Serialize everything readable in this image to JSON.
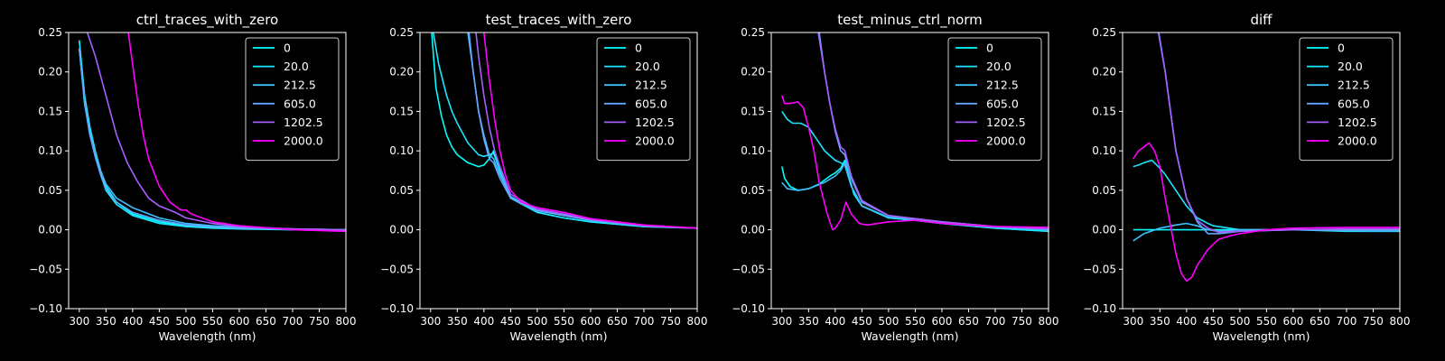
{
  "figure": {
    "background": "#000000",
    "foreground": "#ffffff"
  },
  "legend": {
    "labels": [
      "0",
      "20.0",
      "212.5",
      "605.0",
      "1202.5",
      "2000.0"
    ],
    "colors": [
      "#00ffff",
      "#19e6ff",
      "#40bfff",
      "#66a6ff",
      "#a660ff",
      "#ff00ff"
    ],
    "placement": "top-right"
  },
  "chart_data": [
    {
      "type": "line",
      "title": "ctrl_traces_with_zero",
      "xlabel": "Wavelength (nm)",
      "ylabel": "",
      "xlim": [
        280,
        800
      ],
      "ylim": [
        -0.1,
        0.25
      ],
      "xticks": [
        300,
        350,
        400,
        450,
        500,
        550,
        600,
        650,
        700,
        750,
        800
      ],
      "yticks": [
        -0.1,
        -0.05,
        0.0,
        0.05,
        0.1,
        0.15,
        0.2,
        0.25
      ],
      "ytick_labels": [
        "−0.10",
        "−0.05",
        "0.00",
        "0.05",
        "0.10",
        "0.15",
        "0.20",
        "0.25"
      ],
      "grid": false,
      "legend": "top-right",
      "series": [
        {
          "name": "0",
          "x": [
            300,
            310,
            320,
            330,
            340,
            350,
            370,
            400,
            450,
            500,
            550,
            600,
            700,
            800
          ],
          "y": [
            0.24,
            0.17,
            0.13,
            0.1,
            0.075,
            0.055,
            0.035,
            0.02,
            0.01,
            0.005,
            0.003,
            0.002,
            0.0,
            0.0
          ]
        },
        {
          "name": "20.0",
          "x": [
            300,
            310,
            320,
            330,
            340,
            350,
            370,
            400,
            450,
            500,
            550,
            600,
            700,
            800
          ],
          "y": [
            0.23,
            0.16,
            0.12,
            0.095,
            0.07,
            0.05,
            0.032,
            0.018,
            0.008,
            0.004,
            0.002,
            0.001,
            0.0,
            0.0
          ]
        },
        {
          "name": "212.5",
          "x": [
            300,
            310,
            320,
            330,
            340,
            350,
            370,
            400,
            450,
            500,
            550,
            600,
            700,
            800
          ],
          "y": [
            0.23,
            0.165,
            0.125,
            0.098,
            0.075,
            0.058,
            0.04,
            0.028,
            0.015,
            0.008,
            0.005,
            0.003,
            0.001,
            0.0
          ]
        },
        {
          "name": "605.0",
          "x": [
            300,
            310,
            320,
            330,
            340,
            350,
            370,
            400,
            450,
            500,
            550,
            600,
            700,
            800
          ],
          "y": [
            0.23,
            0.16,
            0.12,
            0.092,
            0.07,
            0.052,
            0.035,
            0.022,
            0.012,
            0.006,
            0.004,
            0.002,
            0.001,
            0.0
          ]
        },
        {
          "name": "1202.5",
          "x": [
            315,
            330,
            350,
            370,
            390,
            410,
            430,
            450,
            480,
            500,
            550,
            600,
            700,
            800
          ],
          "y": [
            0.25,
            0.22,
            0.17,
            0.12,
            0.085,
            0.06,
            0.04,
            0.03,
            0.022,
            0.015,
            0.008,
            0.004,
            0.001,
            0.0
          ]
        },
        {
          "name": "2000.0",
          "x": [
            392,
            400,
            410,
            420,
            430,
            450,
            470,
            490,
            500,
            510,
            550,
            600,
            700,
            800
          ],
          "y": [
            0.25,
            0.21,
            0.16,
            0.12,
            0.09,
            0.055,
            0.035,
            0.025,
            0.025,
            0.02,
            0.01,
            0.005,
            0.0,
            -0.002
          ]
        }
      ]
    },
    {
      "type": "line",
      "title": "test_traces_with_zero",
      "xlabel": "Wavelength (nm)",
      "ylabel": "",
      "xlim": [
        280,
        800
      ],
      "ylim": [
        -0.1,
        0.25
      ],
      "xticks": [
        300,
        350,
        400,
        450,
        500,
        550,
        600,
        650,
        700,
        750,
        800
      ],
      "yticks": [
        -0.1,
        -0.05,
        0.0,
        0.05,
        0.1,
        0.15,
        0.2,
        0.25
      ],
      "ytick_labels": [
        "−0.10",
        "−0.05",
        "0.00",
        "0.05",
        "0.10",
        "0.15",
        "0.20",
        "0.25"
      ],
      "grid": false,
      "legend": "top-right",
      "series": [
        {
          "name": "0",
          "x": [
            302,
            310,
            320,
            330,
            340,
            350,
            370,
            390,
            400,
            410,
            418,
            430,
            450,
            500,
            550,
            600,
            700,
            800
          ],
          "y": [
            0.25,
            0.18,
            0.145,
            0.12,
            0.105,
            0.095,
            0.085,
            0.08,
            0.082,
            0.09,
            0.1,
            0.075,
            0.04,
            0.022,
            0.015,
            0.01,
            0.004,
            0.002
          ]
        },
        {
          "name": "20.0",
          "x": [
            305,
            315,
            330,
            340,
            350,
            370,
            390,
            400,
            410,
            418,
            430,
            450,
            500,
            550,
            600,
            700,
            800
          ],
          "y": [
            0.25,
            0.21,
            0.17,
            0.15,
            0.135,
            0.11,
            0.095,
            0.093,
            0.095,
            0.097,
            0.075,
            0.04,
            0.022,
            0.015,
            0.01,
            0.004,
            0.002
          ]
        },
        {
          "name": "212.5",
          "x": [
            370,
            380,
            390,
            400,
            410,
            418,
            430,
            450,
            500,
            550,
            600,
            700,
            800
          ],
          "y": [
            0.25,
            0.2,
            0.15,
            0.12,
            0.095,
            0.09,
            0.07,
            0.042,
            0.025,
            0.018,
            0.012,
            0.005,
            0.002
          ]
        },
        {
          "name": "605.0",
          "x": [
            372,
            380,
            390,
            400,
            410,
            418,
            430,
            450,
            500,
            550,
            600,
            700,
            800
          ],
          "y": [
            0.25,
            0.2,
            0.15,
            0.115,
            0.09,
            0.085,
            0.065,
            0.04,
            0.024,
            0.018,
            0.012,
            0.005,
            0.002
          ]
        },
        {
          "name": "1202.5",
          "x": [
            385,
            390,
            400,
            410,
            420,
            430,
            450,
            500,
            550,
            600,
            700,
            800
          ],
          "y": [
            0.25,
            0.22,
            0.17,
            0.13,
            0.1,
            0.08,
            0.045,
            0.026,
            0.02,
            0.013,
            0.005,
            0.002
          ]
        },
        {
          "name": "2000.0",
          "x": [
            400,
            410,
            420,
            430,
            440,
            450,
            470,
            500,
            550,
            600,
            700,
            800
          ],
          "y": [
            0.25,
            0.19,
            0.14,
            0.1,
            0.07,
            0.05,
            0.035,
            0.028,
            0.022,
            0.014,
            0.006,
            0.002
          ]
        }
      ]
    },
    {
      "type": "line",
      "title": "test_minus_ctrl_norm",
      "xlabel": "Wavelength (nm)",
      "ylabel": "",
      "xlim": [
        280,
        800
      ],
      "ylim": [
        -0.1,
        0.25
      ],
      "xticks": [
        300,
        350,
        400,
        450,
        500,
        550,
        600,
        650,
        700,
        750,
        800
      ],
      "yticks": [
        -0.1,
        -0.05,
        0.0,
        0.05,
        0.1,
        0.15,
        0.2,
        0.25
      ],
      "ytick_labels": [
        "−0.10",
        "−0.05",
        "0.00",
        "0.05",
        "0.10",
        "0.15",
        "0.20",
        "0.25"
      ],
      "grid": false,
      "legend": "top-right",
      "series": [
        {
          "name": "0",
          "x": [
            300,
            305,
            315,
            330,
            350,
            370,
            390,
            400,
            410,
            418,
            425,
            435,
            450,
            500,
            550,
            600,
            700,
            800
          ],
          "y": [
            0.08,
            0.065,
            0.055,
            0.05,
            0.052,
            0.058,
            0.068,
            0.072,
            0.078,
            0.088,
            0.07,
            0.045,
            0.03,
            0.015,
            0.012,
            0.008,
            0.002,
            -0.002
          ]
        },
        {
          "name": "20.0",
          "x": [
            300,
            310,
            320,
            335,
            350,
            360,
            380,
            400,
            410,
            418,
            430,
            450,
            500,
            550,
            600,
            700,
            800
          ],
          "y": [
            0.15,
            0.14,
            0.135,
            0.135,
            0.13,
            0.12,
            0.1,
            0.088,
            0.085,
            0.082,
            0.055,
            0.03,
            0.015,
            0.012,
            0.008,
            0.002,
            -0.002
          ]
        },
        {
          "name": "212.5",
          "x": [
            300,
            310,
            330,
            350,
            380,
            400,
            410,
            418,
            430,
            450,
            500,
            550,
            600,
            700,
            800
          ],
          "y": [
            0.06,
            0.052,
            0.05,
            0.052,
            0.06,
            0.068,
            0.075,
            0.085,
            0.055,
            0.03,
            0.016,
            0.013,
            0.009,
            0.003,
            0.0
          ]
        },
        {
          "name": "605.0",
          "x": [
            370,
            380,
            390,
            400,
            410,
            418,
            430,
            450,
            500,
            550,
            600,
            700,
            800
          ],
          "y": [
            0.25,
            0.2,
            0.16,
            0.125,
            0.1,
            0.095,
            0.065,
            0.035,
            0.018,
            0.014,
            0.01,
            0.004,
            0.001
          ]
        },
        {
          "name": "1202.5",
          "x": [
            368,
            380,
            390,
            400,
            410,
            418,
            430,
            450,
            500,
            550,
            600,
            700,
            800
          ],
          "y": [
            0.25,
            0.2,
            0.16,
            0.128,
            0.105,
            0.1,
            0.068,
            0.037,
            0.018,
            0.014,
            0.01,
            0.004,
            0.001
          ]
        },
        {
          "name": "2000.0",
          "x": [
            300,
            305,
            315,
            330,
            340,
            350,
            360,
            370,
            385,
            395,
            400,
            410,
            420,
            430,
            445,
            460,
            500,
            550,
            600,
            700,
            800
          ],
          "y": [
            0.17,
            0.16,
            0.16,
            0.162,
            0.155,
            0.13,
            0.1,
            0.06,
            0.02,
            0.0,
            0.002,
            0.012,
            0.035,
            0.02,
            0.008,
            0.006,
            0.01,
            0.012,
            0.008,
            0.004,
            0.003
          ]
        }
      ]
    },
    {
      "type": "line",
      "title": "diff",
      "xlabel": "Wavelength (nm)",
      "ylabel": "",
      "xlim": [
        280,
        800
      ],
      "ylim": [
        -0.1,
        0.25
      ],
      "xticks": [
        300,
        350,
        400,
        450,
        500,
        550,
        600,
        650,
        700,
        750,
        800
      ],
      "yticks": [
        -0.1,
        -0.05,
        0.0,
        0.05,
        0.1,
        0.15,
        0.2,
        0.25
      ],
      "ytick_labels": [
        "−0.10",
        "−0.05",
        "0.00",
        "0.05",
        "0.10",
        "0.15",
        "0.20",
        "0.25"
      ],
      "grid": false,
      "legend": "top-right",
      "series": [
        {
          "name": "0",
          "x": [
            300,
            400,
            500,
            600,
            700,
            800
          ],
          "y": [
            0.0,
            0.0,
            0.0,
            0.0,
            0.0,
            0.0
          ]
        },
        {
          "name": "20.0",
          "x": [
            300,
            310,
            320,
            335,
            350,
            360,
            380,
            400,
            420,
            440,
            450,
            500,
            600,
            700,
            800
          ],
          "y": [
            0.08,
            0.082,
            0.085,
            0.088,
            0.078,
            0.07,
            0.05,
            0.03,
            0.015,
            0.008,
            0.005,
            0.0,
            0.0,
            -0.002,
            -0.002
          ]
        },
        {
          "name": "212.5",
          "x": [
            300,
            320,
            350,
            380,
            400,
            420,
            440,
            460,
            500,
            600,
            700,
            800
          ],
          "y": [
            -0.014,
            -0.005,
            0.002,
            0.006,
            0.008,
            0.005,
            0.0,
            -0.002,
            0.0,
            0.0,
            -0.001,
            -0.002
          ]
        },
        {
          "name": "605.0",
          "x": [
            348,
            360,
            380,
            400,
            420,
            440,
            460,
            500,
            600,
            700,
            800
          ],
          "y": [
            0.25,
            0.2,
            0.1,
            0.04,
            0.01,
            -0.005,
            -0.005,
            -0.002,
            0.0,
            0.0,
            0.0
          ]
        },
        {
          "name": "1202.5",
          "x": [
            347,
            360,
            380,
            400,
            420,
            440,
            460,
            500,
            600,
            700,
            800
          ],
          "y": [
            0.25,
            0.2,
            0.1,
            0.04,
            0.012,
            0.002,
            -0.003,
            -0.002,
            0.0,
            0.001,
            0.001
          ]
        },
        {
          "name": "2000.0",
          "x": [
            300,
            310,
            320,
            330,
            340,
            350,
            360,
            370,
            380,
            390,
            400,
            410,
            420,
            440,
            460,
            480,
            500,
            550,
            600,
            700,
            800
          ],
          "y": [
            0.09,
            0.1,
            0.105,
            0.11,
            0.1,
            0.08,
            0.04,
            0.005,
            -0.03,
            -0.055,
            -0.065,
            -0.06,
            -0.045,
            -0.025,
            -0.012,
            -0.008,
            -0.005,
            0.0,
            0.002,
            0.003,
            0.003
          ]
        }
      ]
    }
  ]
}
